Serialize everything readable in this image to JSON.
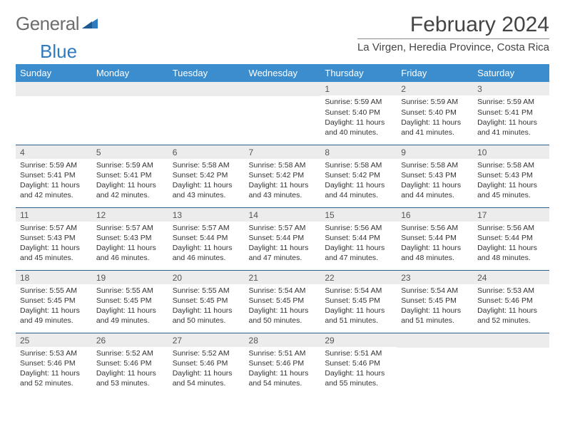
{
  "logo": {
    "word1": "General",
    "word2": "Blue"
  },
  "title": "February 2024",
  "location": "La Virgen, Heredia Province, Costa Rica",
  "colors": {
    "header_bg": "#3c8dce",
    "header_text": "#ffffff",
    "daynum_bg": "#ececec",
    "row_border": "#2b5f8e",
    "logo_gray": "#6d6d6d",
    "logo_blue": "#2f7bbf"
  },
  "weekdays": [
    "Sunday",
    "Monday",
    "Tuesday",
    "Wednesday",
    "Thursday",
    "Friday",
    "Saturday"
  ],
  "first_weekday_index": 4,
  "days": [
    {
      "n": 1,
      "sunrise": "5:59 AM",
      "sunset": "5:40 PM",
      "daylight": "11 hours and 40 minutes."
    },
    {
      "n": 2,
      "sunrise": "5:59 AM",
      "sunset": "5:40 PM",
      "daylight": "11 hours and 41 minutes."
    },
    {
      "n": 3,
      "sunrise": "5:59 AM",
      "sunset": "5:41 PM",
      "daylight": "11 hours and 41 minutes."
    },
    {
      "n": 4,
      "sunrise": "5:59 AM",
      "sunset": "5:41 PM",
      "daylight": "11 hours and 42 minutes."
    },
    {
      "n": 5,
      "sunrise": "5:59 AM",
      "sunset": "5:41 PM",
      "daylight": "11 hours and 42 minutes."
    },
    {
      "n": 6,
      "sunrise": "5:58 AM",
      "sunset": "5:42 PM",
      "daylight": "11 hours and 43 minutes."
    },
    {
      "n": 7,
      "sunrise": "5:58 AM",
      "sunset": "5:42 PM",
      "daylight": "11 hours and 43 minutes."
    },
    {
      "n": 8,
      "sunrise": "5:58 AM",
      "sunset": "5:42 PM",
      "daylight": "11 hours and 44 minutes."
    },
    {
      "n": 9,
      "sunrise": "5:58 AM",
      "sunset": "5:43 PM",
      "daylight": "11 hours and 44 minutes."
    },
    {
      "n": 10,
      "sunrise": "5:58 AM",
      "sunset": "5:43 PM",
      "daylight": "11 hours and 45 minutes."
    },
    {
      "n": 11,
      "sunrise": "5:57 AM",
      "sunset": "5:43 PM",
      "daylight": "11 hours and 45 minutes."
    },
    {
      "n": 12,
      "sunrise": "5:57 AM",
      "sunset": "5:43 PM",
      "daylight": "11 hours and 46 minutes."
    },
    {
      "n": 13,
      "sunrise": "5:57 AM",
      "sunset": "5:44 PM",
      "daylight": "11 hours and 46 minutes."
    },
    {
      "n": 14,
      "sunrise": "5:57 AM",
      "sunset": "5:44 PM",
      "daylight": "11 hours and 47 minutes."
    },
    {
      "n": 15,
      "sunrise": "5:56 AM",
      "sunset": "5:44 PM",
      "daylight": "11 hours and 47 minutes."
    },
    {
      "n": 16,
      "sunrise": "5:56 AM",
      "sunset": "5:44 PM",
      "daylight": "11 hours and 48 minutes."
    },
    {
      "n": 17,
      "sunrise": "5:56 AM",
      "sunset": "5:44 PM",
      "daylight": "11 hours and 48 minutes."
    },
    {
      "n": 18,
      "sunrise": "5:55 AM",
      "sunset": "5:45 PM",
      "daylight": "11 hours and 49 minutes."
    },
    {
      "n": 19,
      "sunrise": "5:55 AM",
      "sunset": "5:45 PM",
      "daylight": "11 hours and 49 minutes."
    },
    {
      "n": 20,
      "sunrise": "5:55 AM",
      "sunset": "5:45 PM",
      "daylight": "11 hours and 50 minutes."
    },
    {
      "n": 21,
      "sunrise": "5:54 AM",
      "sunset": "5:45 PM",
      "daylight": "11 hours and 50 minutes."
    },
    {
      "n": 22,
      "sunrise": "5:54 AM",
      "sunset": "5:45 PM",
      "daylight": "11 hours and 51 minutes."
    },
    {
      "n": 23,
      "sunrise": "5:54 AM",
      "sunset": "5:45 PM",
      "daylight": "11 hours and 51 minutes."
    },
    {
      "n": 24,
      "sunrise": "5:53 AM",
      "sunset": "5:46 PM",
      "daylight": "11 hours and 52 minutes."
    },
    {
      "n": 25,
      "sunrise": "5:53 AM",
      "sunset": "5:46 PM",
      "daylight": "11 hours and 52 minutes."
    },
    {
      "n": 26,
      "sunrise": "5:52 AM",
      "sunset": "5:46 PM",
      "daylight": "11 hours and 53 minutes."
    },
    {
      "n": 27,
      "sunrise": "5:52 AM",
      "sunset": "5:46 PM",
      "daylight": "11 hours and 54 minutes."
    },
    {
      "n": 28,
      "sunrise": "5:51 AM",
      "sunset": "5:46 PM",
      "daylight": "11 hours and 54 minutes."
    },
    {
      "n": 29,
      "sunrise": "5:51 AM",
      "sunset": "5:46 PM",
      "daylight": "11 hours and 55 minutes."
    }
  ],
  "labels": {
    "sunrise": "Sunrise:",
    "sunset": "Sunset:",
    "daylight": "Daylight:"
  }
}
